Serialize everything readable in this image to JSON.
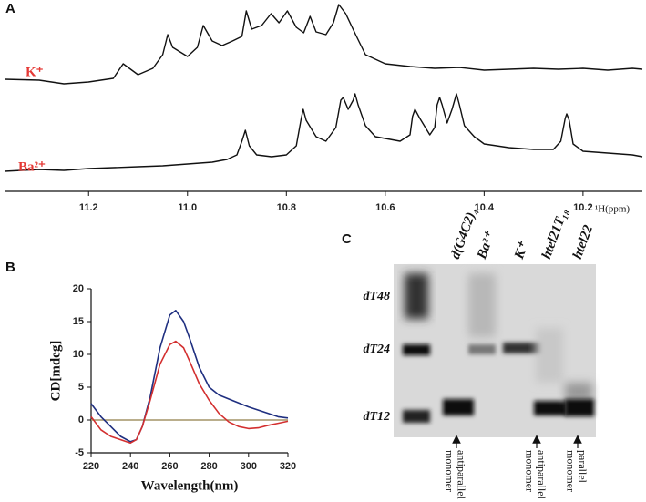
{
  "panel_labels": [
    "A",
    "B",
    "C"
  ],
  "chart_data": [
    {
      "type": "line",
      "xlabel": "¹H(ppm)",
      "xlim": [
        11.37,
        10.08
      ],
      "ylim": [
        0,
        210
      ],
      "xticks": [
        11.2,
        {
          "value": 11,
          "label": "11.0"
        },
        10.8,
        10.6,
        10.4,
        10.2
      ],
      "series": [
        {
          "name": "K⁺",
          "color": "#111111",
          "x": [
            11.37,
            11.3,
            11.25,
            11.2,
            11.15,
            11.13,
            11.1,
            11.07,
            11.05,
            11.04,
            11.03,
            11.0,
            10.98,
            10.968,
            10.95,
            10.93,
            10.909,
            10.89,
            10.881,
            10.87,
            10.85,
            10.831,
            10.815,
            10.798,
            10.78,
            10.765,
            10.752,
            10.74,
            10.72,
            10.705,
            10.694,
            10.68,
            10.66,
            10.64,
            10.6,
            10.55,
            10.5,
            10.45,
            10.4,
            10.35,
            10.3,
            10.25,
            10.2,
            10.15,
            10.1,
            10.08
          ],
          "values": [
            123,
            122,
            118,
            120,
            124,
            140,
            128,
            135,
            150,
            172,
            158,
            148,
            158,
            182,
            165,
            160,
            165,
            170,
            198,
            178,
            182,
            195,
            185,
            198,
            180,
            174,
            192,
            175,
            172,
            185,
            205,
            195,
            172,
            150,
            140,
            137,
            135,
            136,
            133,
            134,
            135,
            134,
            135,
            133,
            135,
            134
          ]
        },
        {
          "name": "Ba²⁺",
          "color": "#111111",
          "x": [
            11.37,
            11.3,
            11.25,
            11.2,
            11.15,
            11.1,
            11.05,
            11.0,
            10.95,
            10.92,
            10.9,
            10.89,
            10.883,
            10.875,
            10.86,
            10.83,
            10.8,
            10.78,
            10.77,
            10.766,
            10.76,
            10.74,
            10.72,
            10.7,
            10.69,
            10.685,
            10.675,
            10.665,
            10.661,
            10.655,
            10.64,
            10.62,
            10.6,
            10.57,
            10.55,
            10.545,
            10.54,
            10.53,
            10.51,
            10.5,
            10.495,
            10.49,
            10.485,
            10.475,
            10.465,
            10.456,
            10.45,
            10.44,
            10.42,
            10.4,
            10.35,
            10.3,
            10.26,
            10.245,
            10.236,
            10.233,
            10.228,
            10.22,
            10.2,
            10.15,
            10.1,
            10.08
          ],
          "values": [
            22,
            24,
            23,
            25,
            26,
            27,
            28,
            30,
            32,
            35,
            40,
            55,
            67,
            50,
            40,
            38,
            40,
            50,
            80,
            90,
            78,
            60,
            55,
            70,
            100,
            103,
            90,
            100,
            107,
            95,
            72,
            60,
            58,
            55,
            62,
            82,
            90,
            80,
            62,
            70,
            95,
            103,
            95,
            75,
            90,
            107,
            95,
            72,
            60,
            52,
            48,
            46,
            46,
            55,
            80,
            85,
            78,
            52,
            44,
            42,
            40,
            38
          ]
        }
      ]
    },
    {
      "type": "line",
      "xlabel": "Wavelength(nm)",
      "ylabel": "CD[mdeg]",
      "xlim": [
        220,
        320
      ],
      "ylim": [
        -5,
        20
      ],
      "xticks": [
        220,
        240,
        260,
        280,
        300,
        320
      ],
      "yticks": [
        -5,
        0,
        5,
        10,
        15,
        20
      ],
      "reference_line": {
        "value": 0,
        "color": "#a39466"
      },
      "series": [
        {
          "color": "#1f2f80",
          "x": [
            220,
            225,
            230,
            235,
            240,
            243,
            246,
            250,
            255,
            260,
            263,
            267,
            270,
            275,
            280,
            285,
            290,
            300,
            310,
            315,
            320
          ],
          "values": [
            2.5,
            0.5,
            -1,
            -2.5,
            -3.3,
            -3,
            -1,
            3.5,
            11,
            16,
            16.7,
            15,
            12.5,
            8,
            5,
            3.8,
            3.2,
            2,
            1,
            0.5,
            0.3
          ]
        },
        {
          "color": "#d32f2f",
          "x": [
            220,
            225,
            230,
            235,
            240,
            243,
            246,
            250,
            255,
            260,
            263,
            267,
            270,
            275,
            280,
            285,
            290,
            295,
            300,
            305,
            310,
            315,
            320
          ],
          "values": [
            0.5,
            -1.5,
            -2.5,
            -3,
            -3.5,
            -3,
            -1,
            3,
            8.5,
            11.5,
            12,
            11,
            9,
            5.5,
            3,
            1,
            -0.3,
            -1,
            -1.3,
            -1.2,
            -0.8,
            -0.5,
            -0.2
          ]
        }
      ]
    }
  ],
  "gel": {
    "lanes": [
      "d(G4C2)₄",
      "Ba²⁺",
      "K⁺",
      "htel21T₁₈",
      "htel22"
    ],
    "markers": [
      "dT48",
      "dT24",
      "dT12"
    ],
    "annotations": [
      {
        "lines": [
          "antiparallel",
          "monomer"
        ]
      },
      {
        "lines": [
          "antiparallel",
          "monomer"
        ]
      },
      {
        "lines": [
          "parallel",
          "monomer"
        ]
      }
    ]
  }
}
